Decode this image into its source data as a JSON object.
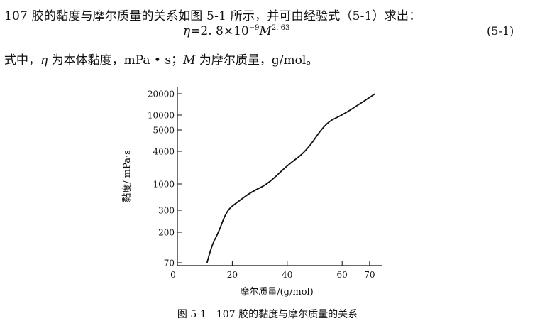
{
  "text": {
    "line1": "107 胶的黏度与摩尔质量的关系如图 5-1 所示，并可由经验式（5-1）求出：",
    "eq_lhs": "η",
    "eq_mid": "=2. 8×10",
    "eq_exp1": "−9",
    "eq_m": "M",
    "eq_exp2": "2. 63",
    "eq_number": "(5-1)",
    "line3_a": "式中，",
    "line3_eta": "η",
    "line3_b": " 为本体黏度，mPa • s；",
    "line3_m": "M",
    "line3_c": " 为摩尔质量，g/mol。",
    "caption": "图 5-1　107 胶的黏度与摩尔质量的关系"
  },
  "chart_data": {
    "type": "line",
    "xlabel": "摩尔质量/(g/mol)",
    "ylabel": "黏度/ mPa·s",
    "x_ticks": [
      {
        "label": "0",
        "value": 0
      },
      {
        "label": "20",
        "value": 20
      },
      {
        "label": "40",
        "value": 40
      },
      {
        "label": "60",
        "value": 60
      },
      {
        "label": "70",
        "value": 70
      }
    ],
    "y_ticks": [
      "20000",
      "10000",
      "5000",
      "4000",
      "1000",
      "300",
      "200",
      "70"
    ],
    "series": [
      {
        "x": [
          10.8,
          11.5,
          13,
          15,
          18,
          22,
          27,
          33,
          40,
          47,
          54,
          60,
          66,
          72
        ],
        "y": [
          "70",
          "90",
          "140",
          "200",
          "300",
          "440",
          "700",
          "1000",
          "2200",
          "4000",
          "7000",
          "10000",
          "14000",
          "20000"
        ]
      }
    ]
  }
}
